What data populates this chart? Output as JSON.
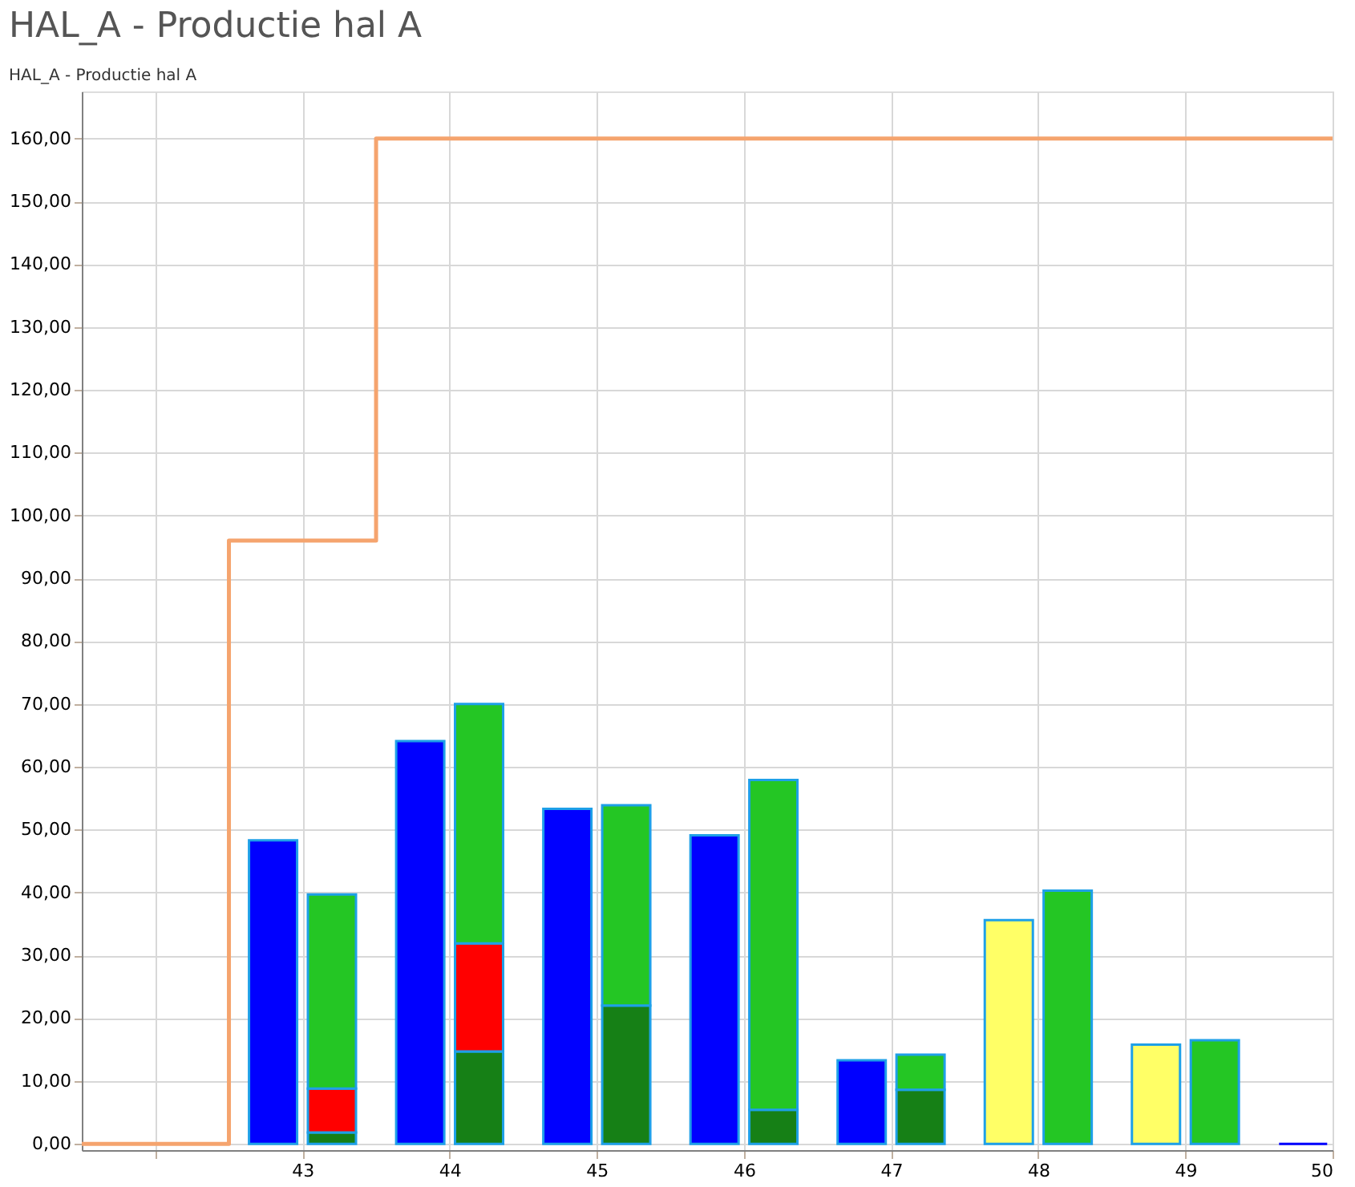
{
  "chart_data": {
    "type": "bar",
    "title": "HAL_A - Productie hal A",
    "subtitle": "HAL_A - Productie hal A",
    "series": [
      {
        "x": [
          41.8,
          42.8,
          43.8,
          44.8,
          45.8,
          46.8,
          47.8,
          48.8,
          49.8
        ],
        "values": [
          0,
          48.3,
          64.1,
          53.3,
          49.1,
          13.3,
          35.6,
          15.8,
          0
        ],
        "colors": [
          "#0000ff",
          "#0000ff",
          "#0000ff",
          "#0000ff",
          "#0000ff",
          "#0000ff",
          "#ffff66",
          "#ffff66",
          "#0000ff"
        ]
      },
      {
        "x": [
          42.2,
          43.2,
          44.2,
          45.2,
          46.2,
          47.2
        ],
        "color": "#168016",
        "values": [
          0,
          1.8,
          14.7,
          22,
          5.4,
          8.6
        ],
        "base": [
          0,
          0,
          0,
          0,
          0,
          0
        ]
      },
      {
        "x": [
          43.2,
          44.2
        ],
        "color": "#ff0000",
        "values": [
          7,
          17.2
        ],
        "base": [
          1.8,
          14.7
        ]
      },
      {
        "x": [
          43.2,
          44.2,
          45.2,
          46.2,
          47.2,
          48.2,
          49.2
        ],
        "color": "#24c624",
        "values": [
          30.9,
          38.1,
          31.9,
          52.5,
          5.6,
          40.3,
          16.5
        ],
        "base": [
          8.8,
          31.9,
          22,
          5.4,
          8.6,
          0,
          0
        ]
      },
      {
        "type": "step",
        "x": [
          41.5,
          42.5,
          43.5,
          50
        ],
        "color": "#f5a46e",
        "values": [
          0,
          96,
          160,
          160
        ]
      }
    ],
    "xlim": [
      41.5,
      50
    ],
    "xticks": [
      {
        "value": 42,
        "label": null
      },
      43,
      44,
      45,
      46,
      47,
      48,
      49,
      50
    ],
    "ylim": [
      -1,
      167.5
    ],
    "yticks": [
      {
        "value": 0,
        "label": "0,00"
      },
      {
        "value": 10,
        "label": "10,00"
      },
      {
        "value": 20,
        "label": "20,00"
      },
      {
        "value": 30,
        "label": "30,00"
      },
      {
        "value": 40,
        "label": "40,00"
      },
      {
        "value": 50,
        "label": "50,00"
      },
      {
        "value": 60,
        "label": "60,00"
      },
      {
        "value": 70,
        "label": "70,00"
      },
      {
        "value": 80,
        "label": "80,00"
      },
      {
        "value": 90,
        "label": "90,00"
      },
      {
        "value": 100,
        "label": "100,00"
      },
      {
        "value": 110,
        "label": "110,00"
      },
      {
        "value": 120,
        "label": "120,00"
      },
      {
        "value": 130,
        "label": "130,00"
      },
      {
        "value": 140,
        "label": "140,00"
      },
      {
        "value": 150,
        "label": "150,00"
      },
      {
        "value": 160,
        "label": "160,00"
      }
    ],
    "grid": true
  }
}
